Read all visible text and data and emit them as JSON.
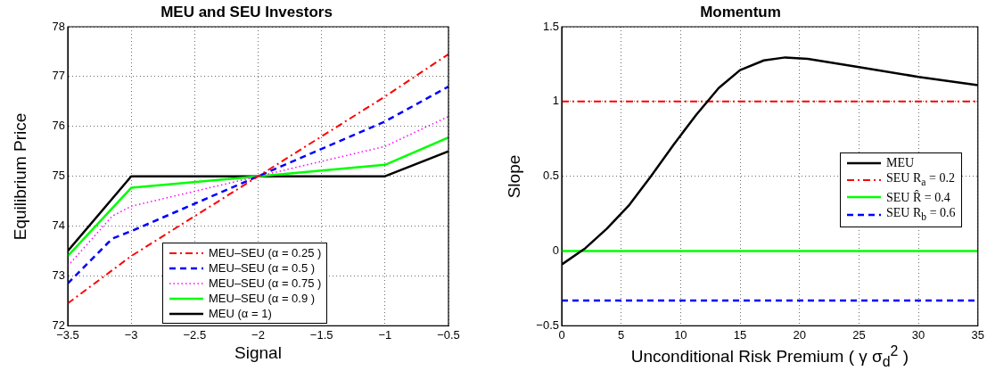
{
  "chart_data": [
    {
      "type": "line",
      "title": "MEU and SEU Investors",
      "xlabel": "Signal",
      "ylabel": "Equilibrium Price",
      "xlim": [
        -3.5,
        -0.5
      ],
      "xticks": [
        -3.5,
        -3,
        -2.5,
        -2,
        -1.5,
        -1,
        -0.5
      ],
      "ylim": [
        72,
        78
      ],
      "yticks": [
        72,
        73,
        74,
        75,
        76,
        77,
        78
      ],
      "grid": true,
      "legend": "bottom right",
      "marker": "none",
      "series": [
        {
          "name": "MEU–SEU (α = 0.25 )",
          "color": "#ff0000",
          "line_style": "dashdot",
          "x": [
            -3.5,
            -3,
            -2,
            -1,
            -0.5
          ],
          "values": [
            72.45,
            73.4,
            75,
            76.6,
            77.45
          ]
        },
        {
          "name": "MEU–SEU (α = 0.5 )",
          "color": "#0000ff",
          "line_style": "dashed",
          "x": [
            -3.5,
            -3.15,
            -3,
            -2,
            -1,
            -0.5
          ],
          "values": [
            72.85,
            73.75,
            73.9,
            75,
            76.1,
            76.8
          ]
        },
        {
          "name": "MEU–SEU (α = 0.75 )",
          "color": "#ff00ff",
          "line_style": "dotted",
          "x": [
            -3.5,
            -3.15,
            -3,
            -2,
            -1,
            -0.5
          ],
          "values": [
            73.2,
            74.2,
            74.4,
            75,
            75.6,
            76.2
          ]
        },
        {
          "name": "MEU–SEU (α = 0.9 )",
          "color": "#00ff00",
          "line_style": "solid",
          "x": [
            -3.5,
            -3,
            -2,
            -1,
            -0.5
          ],
          "values": [
            73.4,
            74.77,
            75,
            75.23,
            75.78
          ]
        },
        {
          "name": "MEU (α = 1)",
          "color": "#000000",
          "line_style": "solid",
          "x": [
            -3.5,
            -3,
            -2,
            -1,
            -0.5
          ],
          "values": [
            73.5,
            75,
            75,
            75,
            75.5
          ]
        }
      ]
    },
    {
      "type": "line",
      "title": "Momentum",
      "xlabel": "Unconditional Risk Premium ( γ σ$_{d}$$^{2}$ )",
      "ylabel": "Slope",
      "xlim": [
        0,
        35
      ],
      "xticks": [
        0,
        5,
        10,
        15,
        20,
        25,
        30,
        35
      ],
      "ylim": [
        -0.5,
        1.5
      ],
      "yticks": [
        -0.5,
        0,
        0.5,
        1,
        1.5
      ],
      "grid": true,
      "legend": "right",
      "marker": "none",
      "series": [
        {
          "name": "MEU",
          "color": "#000000",
          "line_style": "solid",
          "x": [
            0,
            2,
            3.8,
            5.7,
            7.5,
            9.4,
            11.3,
            13.2,
            15,
            17,
            18.8,
            20.7,
            25,
            30,
            35
          ],
          "values": [
            -0.09,
            0.02,
            0.15,
            0.31,
            0.5,
            0.71,
            0.91,
            1.09,
            1.21,
            1.275,
            1.295,
            1.285,
            1.23,
            1.165,
            1.11
          ]
        },
        {
          "name": "SEU R$_{a}$ = 0.2",
          "color": "#ff0000",
          "line_style": "dashdot",
          "x": [
            0,
            35
          ],
          "values": [
            1,
            1
          ]
        },
        {
          "name": "SEU R̂ = 0.4",
          "color": "#00ff00",
          "line_style": "solid",
          "x": [
            0,
            35
          ],
          "values": [
            0,
            0
          ]
        },
        {
          "name": "SEU R$_{b}$ = 0.6",
          "color": "#0000ff",
          "line_style": "dashed",
          "x": [
            0,
            35
          ],
          "values": [
            -0.33,
            -0.33
          ]
        }
      ]
    }
  ]
}
